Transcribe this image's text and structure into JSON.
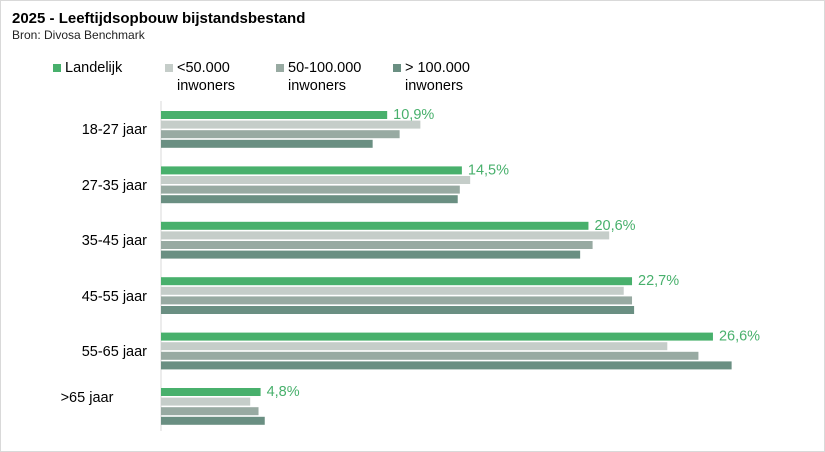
{
  "title": "2025 - Leeftijdsopbouw bijstandsbestand",
  "subtitle": "Bron: Divosa Benchmark",
  "chart_data": {
    "type": "bar",
    "orientation": "horizontal",
    "title": "2025 - Leeftijdsopbouw bijstandsbestand",
    "subtitle": "Bron: Divosa Benchmark",
    "categories": [
      "18-27 jaar",
      "27-35 jaar",
      "35-45 jaar",
      "45-55 jaar",
      "55-65 jaar",
      ">65 jaar"
    ],
    "series": [
      {
        "name": "Landelijk",
        "color": "#48b06c",
        "values": [
          10.9,
          14.5,
          20.6,
          22.7,
          26.6,
          4.8
        ],
        "labels": [
          "10,9%",
          "14,5%",
          "20,6%",
          "22,7%",
          "26,6%",
          "4,8%"
        ]
      },
      {
        "name": "<50.000 inwoners",
        "color": "#c5cdc9",
        "values": [
          12.5,
          14.9,
          21.6,
          22.3,
          24.4,
          4.3
        ]
      },
      {
        "name": "50-100.000 inwoners",
        "color": "#98aaa2",
        "values": [
          11.5,
          14.4,
          20.8,
          22.7,
          25.9,
          4.7
        ]
      },
      {
        "name": "> 100.000 inwoners",
        "color": "#6a8f82",
        "values": [
          10.2,
          14.3,
          20.2,
          22.8,
          27.5,
          5.0
        ]
      }
    ],
    "label_color": "#48b06c",
    "xlim": [
      0,
      30
    ],
    "grid": false,
    "legend_position": "top",
    "xaxis_visible": false
  }
}
